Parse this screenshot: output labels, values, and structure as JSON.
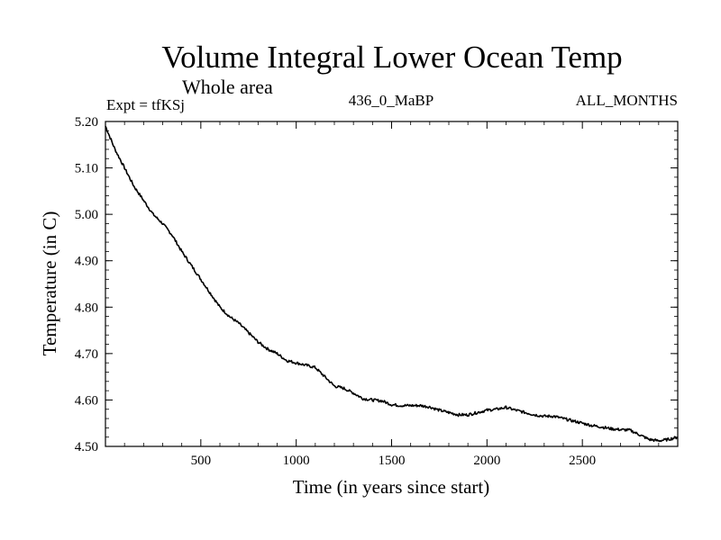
{
  "chart_data": {
    "type": "line",
    "title": "Volume Integral Lower Ocean Temp",
    "subtitle": "Whole area",
    "experiment_label": "Expt = tfKSj",
    "center_label": "436_0_MaBP",
    "right_label": "ALL_MONTHS",
    "xlabel": "Time (in years since start)",
    "ylabel": "Temperature (in C)",
    "xlim": [
      0,
      3000
    ],
    "ylim": [
      4.5,
      5.2
    ],
    "xticks": [
      500,
      1000,
      1500,
      2000,
      2500
    ],
    "xtick_labels": [
      "500",
      "1000",
      "1500",
      "2000",
      "2500"
    ],
    "yticks": [
      4.5,
      4.6,
      4.7,
      4.8,
      4.9,
      5.0,
      5.1,
      5.2
    ],
    "ytick_labels": [
      "4.50",
      "4.60",
      "4.70",
      "4.80",
      "4.90",
      "5.00",
      "5.10",
      "5.20"
    ],
    "grid": false,
    "series": [
      {
        "name": "Volume Integral Lower Ocean Temp",
        "color": "#000000",
        "x": [
          0,
          50,
          100,
          150,
          200,
          250,
          300,
          350,
          400,
          450,
          500,
          550,
          600,
          650,
          700,
          750,
          800,
          850,
          900,
          950,
          1000,
          1050,
          1100,
          1150,
          1200,
          1250,
          1300,
          1350,
          1400,
          1450,
          1500,
          1550,
          1600,
          1650,
          1700,
          1750,
          1800,
          1850,
          1900,
          1950,
          2000,
          2050,
          2100,
          2150,
          2200,
          2250,
          2300,
          2350,
          2400,
          2450,
          2500,
          2550,
          2600,
          2650,
          2700,
          2750,
          2800,
          2850,
          2900,
          2950,
          3000
        ],
        "values": [
          5.19,
          5.14,
          5.1,
          5.06,
          5.03,
          5.0,
          4.98,
          4.955,
          4.92,
          4.89,
          4.86,
          4.83,
          4.8,
          4.78,
          4.765,
          4.745,
          4.725,
          4.71,
          4.7,
          4.685,
          4.68,
          4.675,
          4.67,
          4.65,
          4.63,
          4.625,
          4.615,
          4.603,
          4.6,
          4.598,
          4.59,
          4.588,
          4.588,
          4.588,
          4.585,
          4.578,
          4.573,
          4.568,
          4.568,
          4.573,
          4.578,
          4.58,
          4.584,
          4.578,
          4.573,
          4.568,
          4.565,
          4.565,
          4.56,
          4.555,
          4.55,
          4.545,
          4.542,
          4.538,
          4.536,
          4.535,
          4.525,
          4.515,
          4.512,
          4.515,
          4.52
        ]
      }
    ]
  }
}
